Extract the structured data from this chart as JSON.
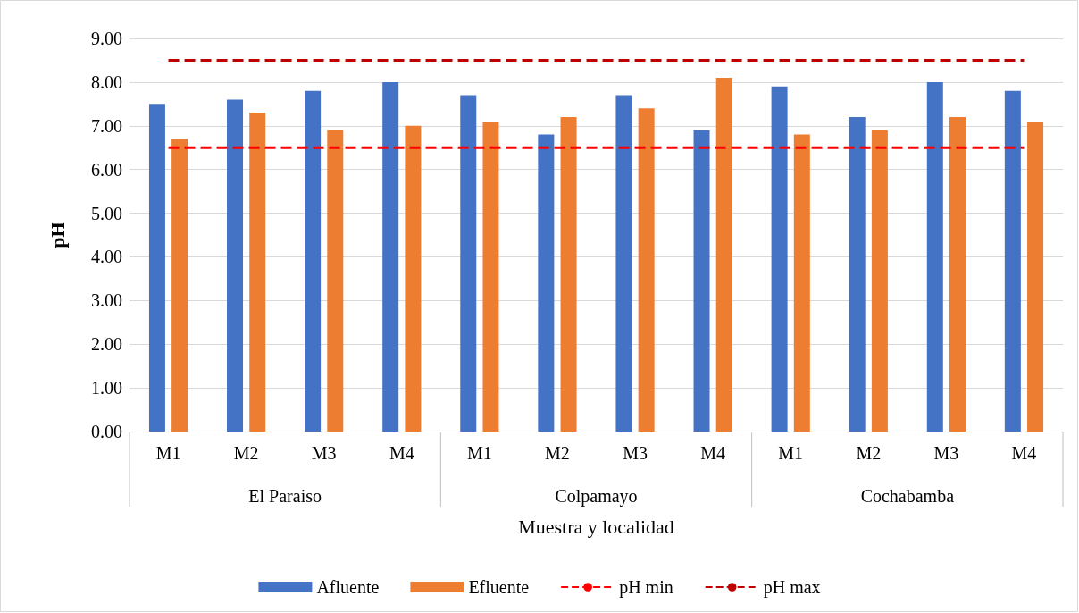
{
  "chart_data": {
    "type": "bar",
    "categories": [
      "M1",
      "M2",
      "M3",
      "M4",
      "M1",
      "M2",
      "M3",
      "M4",
      "M1",
      "M2",
      "M3",
      "M4"
    ],
    "series": [
      {
        "name": "Afluente",
        "color": "#4472c4",
        "values": [
          7.5,
          7.6,
          7.8,
          8.0,
          7.7,
          6.8,
          7.7,
          6.9,
          7.9,
          7.2,
          8.0,
          7.8
        ]
      },
      {
        "name": "Efluente",
        "color": "#ed7d31",
        "values": [
          6.7,
          7.3,
          6.9,
          7.0,
          7.1,
          7.2,
          7.4,
          8.1,
          6.8,
          6.9,
          7.2,
          7.1
        ]
      },
      {
        "name": "pH min",
        "type": "line",
        "color": "#ff0000",
        "line_style": "dashed",
        "values": [
          6.5,
          6.5,
          6.5,
          6.5,
          6.5,
          6.5,
          6.5,
          6.5,
          6.5,
          6.5,
          6.5,
          6.5
        ]
      },
      {
        "name": "pH max",
        "type": "line",
        "color": "#c00000",
        "line_style": "dashed",
        "values": [
          8.5,
          8.5,
          8.5,
          8.5,
          8.5,
          8.5,
          8.5,
          8.5,
          8.5,
          8.5,
          8.5,
          8.5
        ]
      }
    ],
    "annotations": [
      "El Paraiso",
      "Colpamayo",
      "Cochabamba"
    ],
    "xlabel": "Muestra y localidad",
    "ylabel": "pH",
    "ylim": [
      0,
      9
    ],
    "yticks": [
      {
        "value": 0,
        "label": "0.00"
      },
      {
        "value": 1,
        "label": "1.00"
      },
      {
        "value": 2,
        "label": "2.00"
      },
      {
        "value": 3,
        "label": "3.00"
      },
      {
        "value": 4,
        "label": "4.00"
      },
      {
        "value": 5,
        "label": "5.00"
      },
      {
        "value": 6,
        "label": "6.00"
      },
      {
        "value": 7,
        "label": "7.00"
      },
      {
        "value": 8,
        "label": "8.00"
      },
      {
        "value": 9,
        "label": "9.00"
      }
    ],
    "grid": "y",
    "legend": "bottom",
    "marker": "none"
  }
}
